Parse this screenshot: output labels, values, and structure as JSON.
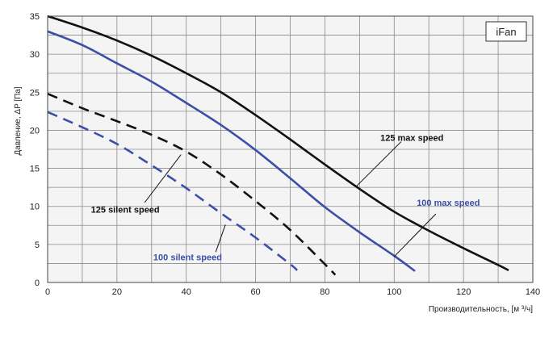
{
  "chart_data": {
    "type": "line",
    "badge": "iFan",
    "xlabel": "Производительность, [м ³/ч]",
    "ylabel": "Давление, ΔP [Па]",
    "xlim": [
      0,
      140
    ],
    "ylim": [
      0,
      35
    ],
    "x_ticks": [
      0,
      20,
      40,
      60,
      80,
      100,
      120,
      140
    ],
    "y_ticks": [
      0,
      5,
      10,
      15,
      20,
      25,
      30,
      35
    ],
    "x_minor_step": 10,
    "y_minor_step": 2.5,
    "grid": true,
    "colors": {
      "black": "#111111",
      "blue": "#3b4fa8",
      "grid": "#8a8a8a",
      "plot_bg": "#f4f4f4"
    },
    "series": [
      {
        "name": "125 max speed",
        "color": "#111111",
        "dashed": false,
        "label_xy": [
          96,
          18.6
        ],
        "leader_from": [
          102,
          18.5
        ],
        "leader_to": [
          89,
          12.6
        ],
        "points": [
          [
            0,
            35
          ],
          [
            10,
            33.5
          ],
          [
            20,
            31.8
          ],
          [
            30,
            29.8
          ],
          [
            40,
            27.5
          ],
          [
            50,
            25
          ],
          [
            60,
            22
          ],
          [
            70,
            18.8
          ],
          [
            80,
            15.5
          ],
          [
            90,
            12.3
          ],
          [
            100,
            9.3
          ],
          [
            110,
            6.8
          ],
          [
            120,
            4.5
          ],
          [
            130,
            2.3
          ],
          [
            133,
            1.6
          ]
        ]
      },
      {
        "name": "100 max speed",
        "color": "#3b4fa8",
        "dashed": false,
        "label_xy": [
          106.5,
          10.1
        ],
        "leader_from": [
          112,
          9.0
        ],
        "leader_to": [
          100,
          3.4
        ],
        "points": [
          [
            0,
            33
          ],
          [
            10,
            31.2
          ],
          [
            20,
            28.8
          ],
          [
            30,
            26.4
          ],
          [
            40,
            23.6
          ],
          [
            50,
            20.7
          ],
          [
            60,
            17.4
          ],
          [
            70,
            13.7
          ],
          [
            80,
            9.9
          ],
          [
            90,
            6.6
          ],
          [
            100,
            3.5
          ],
          [
            106,
            1.5
          ]
        ]
      },
      {
        "name": "125 silent speed",
        "color": "#111111",
        "dashed": true,
        "label_xy": [
          12.5,
          9.2
        ],
        "leader_from": [
          28,
          10.5
        ],
        "leader_to": [
          38.5,
          16.8
        ],
        "points": [
          [
            0,
            24.8
          ],
          [
            10,
            22.9
          ],
          [
            20,
            21.2
          ],
          [
            30,
            19.4
          ],
          [
            40,
            17.2
          ],
          [
            50,
            14.2
          ],
          [
            60,
            10.7
          ],
          [
            70,
            6.9
          ],
          [
            80,
            2.4
          ],
          [
            83,
            1.0
          ]
        ]
      },
      {
        "name": "100 silent speed",
        "color": "#3b4fa8",
        "dashed": true,
        "label_xy": [
          30.5,
          2.9
        ],
        "leader_from": [
          48.5,
          4.0
        ],
        "leader_to": [
          51.3,
          7.6
        ],
        "points": [
          [
            0,
            22.4
          ],
          [
            10,
            20.4
          ],
          [
            20,
            18.2
          ],
          [
            30,
            15.4
          ],
          [
            40,
            12.4
          ],
          [
            50,
            9.1
          ],
          [
            60,
            5.9
          ],
          [
            70,
            2.4
          ],
          [
            72,
            1.6
          ]
        ]
      }
    ]
  }
}
